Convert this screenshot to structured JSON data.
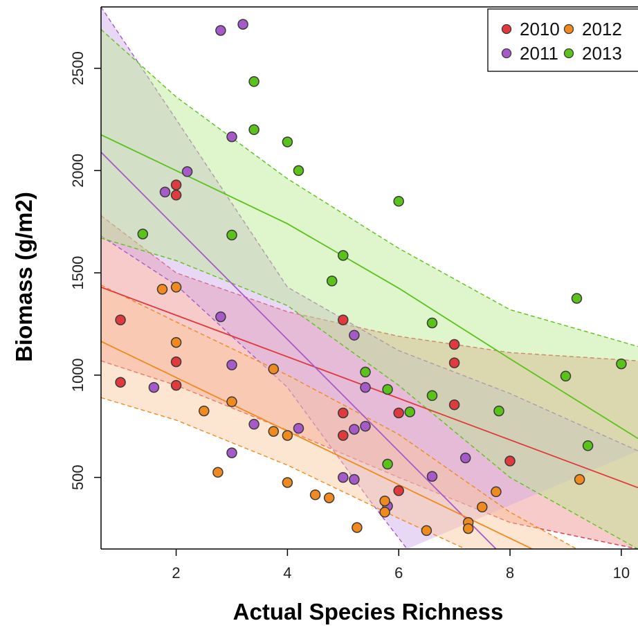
{
  "chart_data": {
    "type": "scatter",
    "xlabel": "Actual Species Richness",
    "ylabel": "Biomass (g/m2)",
    "xlim": [
      0.65,
      10.3
    ],
    "ylim": [
      150,
      2800
    ],
    "x_ticks": [
      2,
      4,
      6,
      8,
      10
    ],
    "y_ticks": [
      500,
      1000,
      1500,
      2000,
      2500
    ],
    "legend_position": "top-right",
    "series": [
      {
        "name": "2010",
        "color": "#E0393E",
        "band_color": "#F08C8C",
        "fit": {
          "x": [
            0.65,
            10.3
          ],
          "y": [
            1430,
            450
          ]
        },
        "band_upper": {
          "x": [
            0.65,
            2,
            4,
            6,
            8,
            10.3
          ],
          "y": [
            1780,
            1500,
            1310,
            1190,
            1110,
            1070
          ]
        },
        "band_lower": {
          "x": [
            0.65,
            2,
            4,
            6,
            8,
            10.3
          ],
          "y": [
            1070,
            950,
            730,
            500,
            280,
            150
          ]
        },
        "points": [
          {
            "x": 1.0,
            "y": 1270
          },
          {
            "x": 1.0,
            "y": 965
          },
          {
            "x": 2.0,
            "y": 1930
          },
          {
            "x": 2.0,
            "y": 1880
          },
          {
            "x": 2.0,
            "y": 1065
          },
          {
            "x": 2.0,
            "y": 950
          },
          {
            "x": 5.0,
            "y": 1270
          },
          {
            "x": 5.0,
            "y": 815
          },
          {
            "x": 5.0,
            "y": 705
          },
          {
            "x": 6.0,
            "y": 815
          },
          {
            "x": 6.0,
            "y": 435
          },
          {
            "x": 7.0,
            "y": 1150
          },
          {
            "x": 7.0,
            "y": 1060
          },
          {
            "x": 7.0,
            "y": 855
          },
          {
            "x": 8.0,
            "y": 580
          }
        ]
      },
      {
        "name": "2011",
        "color": "#A65AC8",
        "band_color": "#CFA8E8",
        "fit": {
          "x": [
            0.65,
            7.75
          ],
          "y": [
            2090,
            150
          ]
        },
        "band_upper": {
          "x": [
            0.65,
            2,
            4,
            6,
            8,
            10.3
          ],
          "y": [
            2800,
            2250,
            1430,
            1120,
            910,
            630
          ]
        },
        "band_lower": {
          "x": [
            0.65,
            2,
            4,
            5.5,
            6.15
          ],
          "y": [
            1680,
            1440,
            940,
            380,
            150
          ]
        },
        "points": [
          {
            "x": 1.6,
            "y": 940
          },
          {
            "x": 1.8,
            "y": 1895
          },
          {
            "x": 2.2,
            "y": 1995
          },
          {
            "x": 2.8,
            "y": 2685
          },
          {
            "x": 2.8,
            "y": 1285
          },
          {
            "x": 3.0,
            "y": 2165
          },
          {
            "x": 3.0,
            "y": 1050
          },
          {
            "x": 3.0,
            "y": 620
          },
          {
            "x": 3.2,
            "y": 2715
          },
          {
            "x": 3.4,
            "y": 760
          },
          {
            "x": 4.2,
            "y": 740
          },
          {
            "x": 5.0,
            "y": 500
          },
          {
            "x": 5.2,
            "y": 1195
          },
          {
            "x": 5.2,
            "y": 735
          },
          {
            "x": 5.2,
            "y": 490
          },
          {
            "x": 5.4,
            "y": 940
          },
          {
            "x": 5.4,
            "y": 750
          },
          {
            "x": 5.8,
            "y": 360
          },
          {
            "x": 6.6,
            "y": 505
          },
          {
            "x": 7.2,
            "y": 595
          }
        ]
      },
      {
        "name": "2012",
        "color": "#F08A1E",
        "band_color": "#FBC89A",
        "fit": {
          "x": [
            0.65,
            8.4
          ],
          "y": [
            1165,
            150
          ]
        },
        "band_upper": {
          "x": [
            0.65,
            2,
            4,
            6,
            8,
            9.2
          ],
          "y": [
            1440,
            1260,
            1000,
            710,
            330,
            150
          ]
        },
        "band_lower": {
          "x": [
            0.65,
            2,
            4,
            6,
            7.2
          ],
          "y": [
            890,
            780,
            560,
            300,
            150
          ]
        },
        "points": [
          {
            "x": 1.75,
            "y": 1420
          },
          {
            "x": 2.0,
            "y": 1430
          },
          {
            "x": 2.0,
            "y": 1160
          },
          {
            "x": 2.5,
            "y": 825
          },
          {
            "x": 2.75,
            "y": 525
          },
          {
            "x": 3.0,
            "y": 870
          },
          {
            "x": 3.75,
            "y": 1030
          },
          {
            "x": 3.75,
            "y": 725
          },
          {
            "x": 4.0,
            "y": 705
          },
          {
            "x": 4.0,
            "y": 475
          },
          {
            "x": 4.5,
            "y": 415
          },
          {
            "x": 4.75,
            "y": 400
          },
          {
            "x": 5.25,
            "y": 255
          },
          {
            "x": 5.75,
            "y": 385
          },
          {
            "x": 5.75,
            "y": 330
          },
          {
            "x": 6.5,
            "y": 240
          },
          {
            "x": 7.25,
            "y": 280
          },
          {
            "x": 7.25,
            "y": 250
          },
          {
            "x": 7.5,
            "y": 355
          },
          {
            "x": 7.75,
            "y": 430
          },
          {
            "x": 9.25,
            "y": 490
          }
        ]
      },
      {
        "name": "2013",
        "color": "#5BC21B",
        "band_color": "#B8E88E",
        "fit": {
          "x": [
            0.65,
            2,
            4,
            6,
            8,
            10.3
          ],
          "y": [
            2175,
            2000,
            1740,
            1425,
            1080,
            690
          ]
        },
        "band_upper": {
          "x": [
            0.65,
            2,
            4,
            6,
            8,
            10.3
          ],
          "y": [
            2690,
            2360,
            1960,
            1620,
            1320,
            1140
          ]
        },
        "band_lower": {
          "x": [
            0.65,
            2,
            4,
            6,
            8,
            10.3
          ],
          "y": [
            1670,
            1560,
            1340,
            950,
            500,
            150
          ]
        },
        "points": [
          {
            "x": 1.4,
            "y": 1690
          },
          {
            "x": 3.0,
            "y": 1685
          },
          {
            "x": 3.4,
            "y": 2435
          },
          {
            "x": 3.4,
            "y": 2200
          },
          {
            "x": 4.0,
            "y": 2140
          },
          {
            "x": 4.2,
            "y": 2000
          },
          {
            "x": 4.8,
            "y": 1460
          },
          {
            "x": 5.0,
            "y": 1585
          },
          {
            "x": 5.4,
            "y": 1015
          },
          {
            "x": 5.8,
            "y": 930
          },
          {
            "x": 5.8,
            "y": 565
          },
          {
            "x": 6.0,
            "y": 1850
          },
          {
            "x": 6.2,
            "y": 820
          },
          {
            "x": 6.6,
            "y": 1255
          },
          {
            "x": 6.6,
            "y": 900
          },
          {
            "x": 7.8,
            "y": 825
          },
          {
            "x": 9.0,
            "y": 995
          },
          {
            "x": 9.2,
            "y": 1375
          },
          {
            "x": 9.4,
            "y": 655
          },
          {
            "x": 10.0,
            "y": 1055
          }
        ]
      }
    ]
  }
}
